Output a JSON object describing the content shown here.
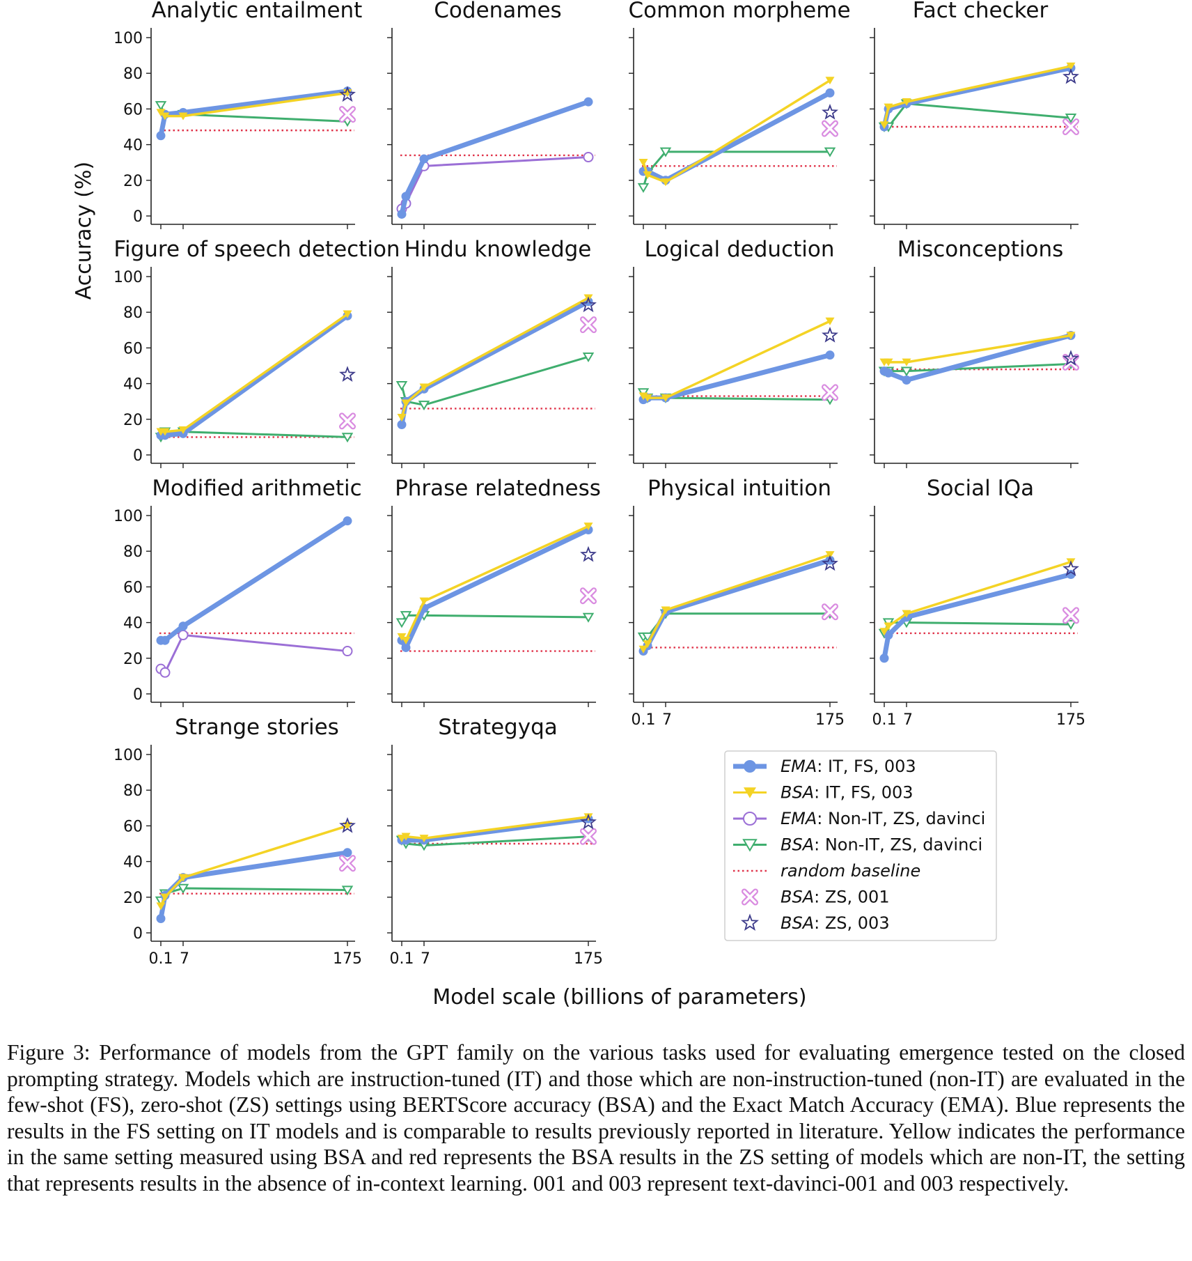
{
  "figure": {
    "ylabel": "Accuracy (%)",
    "xlabel": "Model scale (billions of parameters)",
    "caption": "Figure 3:  Performance of models from the GPT family on the various tasks used for evaluating emergence tested on the closed prompting strategy. Models which are instruction-tuned (IT) and those which are non-instruction-tuned (non-IT) are evaluated in the few-shot (FS), zero-shot (ZS) settings using BERTScore accuracy (BSA) and the Exact Match Accuracy (EMA). Blue represents the results in the FS setting on IT models and is comparable to results previously reported in literature. Yellow indicates the performance in the same setting measured using BSA and red represents the BSA results in the ZS setting of models which are non-IT, the setting that represents results in the absence of in-context learning. 001 and 003 represent text-davinci-001 and 003 respectively."
  },
  "legend": [
    {
      "key": "ema_it",
      "method": "EMA",
      "rest": ": IT, FS, 003",
      "color": "#6d95e3",
      "marker": "circle-filled"
    },
    {
      "key": "bsa_it",
      "method": "BSA",
      "rest": ": IT, FS, 003",
      "color": "#f4d325",
      "marker": "triangle-down-filled"
    },
    {
      "key": "ema_non",
      "method": "EMA",
      "rest": ": Non-IT, ZS, davinci",
      "color": "#9b6fd6",
      "marker": "circle-open"
    },
    {
      "key": "bsa_non",
      "method": "BSA",
      "rest": ": Non-IT, ZS, davinci",
      "color": "#3fae6e",
      "marker": "triangle-down-open"
    },
    {
      "key": "random",
      "method": "random baseline",
      "rest": "",
      "color": "#e0334a",
      "marker": "dotted-line"
    },
    {
      "key": "zs001",
      "method": "BSA",
      "rest": ": ZS, 001",
      "color": "#d98be0",
      "marker": "x-box"
    },
    {
      "key": "zs003",
      "method": "BSA",
      "rest": ": ZS, 003",
      "color": "#3c3a8a",
      "marker": "star-open"
    }
  ],
  "chart_data": {
    "type": "line",
    "x_ticks": [
      "0.1",
      "7",
      "175"
    ],
    "x_positions_billions": [
      0.35,
      1.3,
      6.7,
      175
    ],
    "ylim": [
      0,
      100
    ],
    "y_ticks": [
      0,
      20,
      40,
      60,
      80,
      100
    ],
    "panels": [
      {
        "title": "Analytic entailment",
        "ema_it": [
          45,
          57,
          58,
          70
        ],
        "bsa_it": [
          58,
          56,
          56,
          69
        ],
        "ema_non": null,
        "bsa_non": [
          62,
          56,
          57,
          53
        ],
        "random": 48,
        "zs001": 57,
        "zs003": 68
      },
      {
        "title": "Codenames",
        "ema_it": [
          1,
          11,
          32,
          64
        ],
        "bsa_it": null,
        "ema_non": [
          4,
          7,
          28,
          33
        ],
        "bsa_non": null,
        "random": 34,
        "zs001": null,
        "zs003": null
      },
      {
        "title": "Common morpheme",
        "ema_it": [
          25,
          25,
          20,
          69
        ],
        "bsa_it": [
          30,
          23,
          19,
          76
        ],
        "ema_non": null,
        "bsa_non": [
          16,
          24,
          36,
          36
        ],
        "random": 28,
        "zs001": 49,
        "zs003": 58
      },
      {
        "title": "Fact checker",
        "ema_it": [
          50,
          60,
          63,
          83
        ],
        "bsa_it": [
          51,
          61,
          64,
          84
        ],
        "ema_non": null,
        "bsa_non": [
          50,
          50,
          63,
          55
        ],
        "random": 50,
        "zs001": 50,
        "zs003": 78
      },
      {
        "title": "Figure of speech detection",
        "ema_it": [
          11,
          11,
          12,
          78
        ],
        "bsa_it": [
          13,
          13,
          14,
          79
        ],
        "ema_non": null,
        "bsa_non": [
          10,
          13,
          13,
          10
        ],
        "random": 10,
        "zs001": 19,
        "zs003": 45
      },
      {
        "title": "Hindu knowledge",
        "ema_it": [
          17,
          30,
          37,
          86
        ],
        "bsa_it": [
          21,
          29,
          38,
          88
        ],
        "ema_non": null,
        "bsa_non": [
          39,
          30,
          28,
          55
        ],
        "random": 26,
        "zs001": 73,
        "zs003": 84
      },
      {
        "title": "Logical deduction",
        "ema_it": [
          31,
          32,
          32,
          56
        ],
        "bsa_it": [
          33,
          32,
          32,
          75
        ],
        "ema_non": null,
        "bsa_non": [
          35,
          32,
          32,
          31
        ],
        "random": 33,
        "zs001": 35,
        "zs003": 67
      },
      {
        "title": "Misconceptions",
        "ema_it": [
          47,
          46,
          42,
          67
        ],
        "bsa_it": [
          52,
          52,
          52,
          67
        ],
        "ema_non": null,
        "bsa_non": [
          47,
          47,
          47,
          51
        ],
        "random": 48,
        "zs001": 52,
        "zs003": 54
      },
      {
        "title": "Modified arithmetic",
        "ema_it": [
          30,
          30,
          38,
          97
        ],
        "bsa_it": null,
        "ema_non": [
          14,
          12,
          33,
          24
        ],
        "bsa_non": null,
        "random": 34,
        "zs001": null,
        "zs003": null
      },
      {
        "title": "Phrase relatedness",
        "ema_it": [
          30,
          26,
          48,
          92
        ],
        "bsa_it": [
          32,
          30,
          52,
          94
        ],
        "ema_non": null,
        "bsa_non": [
          40,
          44,
          44,
          43
        ],
        "random": 24,
        "zs001": 55,
        "zs003": 78
      },
      {
        "title": "Physical intuition",
        "ema_it": [
          24,
          27,
          46,
          75
        ],
        "bsa_it": [
          25,
          28,
          47,
          78
        ],
        "ema_non": null,
        "bsa_non": [
          32,
          32,
          45,
          45
        ],
        "random": 26,
        "zs001": 46,
        "zs003": 73
      },
      {
        "title": "Social IQa",
        "ema_it": [
          20,
          33,
          43,
          67
        ],
        "bsa_it": [
          35,
          38,
          45,
          74
        ],
        "ema_non": null,
        "bsa_non": [
          34,
          40,
          40,
          39
        ],
        "random": 34,
        "zs001": 44,
        "zs003": 70
      },
      {
        "title": "Strange stories",
        "ema_it": [
          8,
          21,
          31,
          45
        ],
        "bsa_it": [
          15,
          20,
          31,
          60
        ],
        "ema_non": null,
        "bsa_non": [
          18,
          22,
          25,
          24
        ],
        "random": 22,
        "zs001": 39,
        "zs003": 60
      },
      {
        "title": "Strategyqa",
        "ema_it": [
          52,
          52,
          52,
          64
        ],
        "bsa_it": [
          53,
          54,
          53,
          65
        ],
        "ema_non": null,
        "bsa_non": [
          52,
          50,
          49,
          54
        ],
        "random": 50,
        "zs001": 54,
        "zs003": 62
      }
    ]
  }
}
